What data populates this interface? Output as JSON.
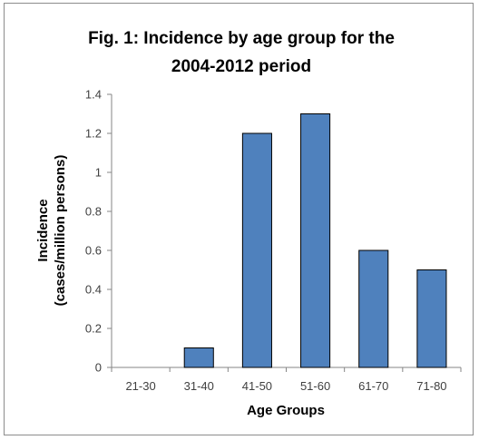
{
  "chart_data": {
    "type": "bar",
    "title_lines": [
      "Fig. 1: Incidence by age group for the",
      "2004-2012 period"
    ],
    "categories": [
      "21-30",
      "31-40",
      "41-50",
      "51-60",
      "61-70",
      "71-80"
    ],
    "values": [
      0,
      0.1,
      1.2,
      1.3,
      0.6,
      0.5
    ],
    "xlabel": "Age Groups",
    "ylabel_lines": [
      "Incidence",
      "(cases/million persons)"
    ],
    "ylim": [
      0,
      1.4
    ],
    "yticks": [
      "0",
      "0.2",
      "0.4",
      "0.6",
      "0.8",
      "1",
      "1.2",
      "1.4"
    ],
    "grid": false,
    "legend": "none",
    "bar_color": "#4f81bd",
    "bar_border_color": "#000000"
  }
}
